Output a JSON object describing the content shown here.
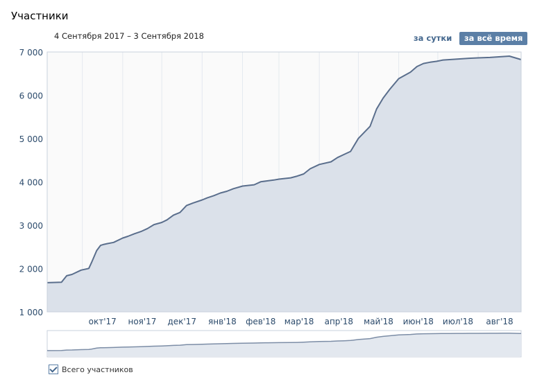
{
  "header": {
    "title": "Участники",
    "date_range": "4 Сентября 2017 – 3 Сентября 2018",
    "btn_day": "за сутки",
    "btn_all": "за всё время"
  },
  "legend": {
    "label": "Всего участников",
    "checked": true
  },
  "colors": {
    "line": "#5a6e8c",
    "fill": "#dbe1ea",
    "grid": "#e4e9ef",
    "bg": "#fafafa"
  },
  "chart_data": {
    "type": "area",
    "title": "",
    "xlabel": "",
    "ylabel": "",
    "ylim": [
      1000,
      7000
    ],
    "xlim": [
      "2017-09-04",
      "2018-09-03"
    ],
    "y_ticks": [
      "1 000",
      "2 000",
      "3 000",
      "4 000",
      "5 000",
      "6 000",
      "7 000"
    ],
    "x_ticks": [
      {
        "label": "окт'17",
        "date": "2017-10-01"
      },
      {
        "label": "ноя'17",
        "date": "2017-11-01"
      },
      {
        "label": "дек'17",
        "date": "2017-12-01"
      },
      {
        "label": "янв'18",
        "date": "2018-01-01"
      },
      {
        "label": "фев'18",
        "date": "2018-02-01"
      },
      {
        "label": "мар'18",
        "date": "2018-03-01"
      },
      {
        "label": "апр'18",
        "date": "2018-04-01"
      },
      {
        "label": "май'18",
        "date": "2018-05-01"
      },
      {
        "label": "июн'18",
        "date": "2018-06-01"
      },
      {
        "label": "июл'18",
        "date": "2018-07-01"
      },
      {
        "label": "авг'18",
        "date": "2018-08-01"
      }
    ],
    "series": [
      {
        "name": "Всего участников",
        "x": [
          "2017-09-04",
          "2017-09-15",
          "2017-09-19",
          "2017-09-23",
          "2017-09-30",
          "2017-10-06",
          "2017-10-08",
          "2017-10-12",
          "2017-10-15",
          "2017-10-17",
          "2017-10-20",
          "2017-10-25",
          "2017-11-01",
          "2017-11-05",
          "2017-11-10",
          "2017-11-15",
          "2017-11-20",
          "2017-11-25",
          "2017-12-01",
          "2017-12-05",
          "2017-12-10",
          "2017-12-15",
          "2017-12-20",
          "2017-12-25",
          "2018-01-01",
          "2018-01-05",
          "2018-01-10",
          "2018-01-15",
          "2018-01-20",
          "2018-01-25",
          "2018-02-01",
          "2018-02-10",
          "2018-02-15",
          "2018-02-20",
          "2018-02-25",
          "2018-03-01",
          "2018-03-10",
          "2018-03-15",
          "2018-03-20",
          "2018-03-25",
          "2018-04-01",
          "2018-04-10",
          "2018-04-15",
          "2018-04-20",
          "2018-04-25",
          "2018-05-01",
          "2018-05-10",
          "2018-05-15",
          "2018-05-20",
          "2018-05-25",
          "2018-06-01",
          "2018-06-10",
          "2018-06-15",
          "2018-06-20",
          "2018-06-25",
          "2018-06-30",
          "2018-07-05",
          "2018-07-10",
          "2018-07-15",
          "2018-07-20",
          "2018-07-25",
          "2018-08-01",
          "2018-08-10",
          "2018-08-15",
          "2018-08-20",
          "2018-08-25",
          "2018-09-03"
        ],
        "values": [
          1690,
          1700,
          1850,
          1880,
          1980,
          2020,
          2150,
          2430,
          2550,
          2570,
          2590,
          2620,
          2720,
          2760,
          2820,
          2870,
          2940,
          3030,
          3080,
          3140,
          3250,
          3310,
          3470,
          3530,
          3600,
          3650,
          3700,
          3760,
          3800,
          3860,
          3920,
          3950,
          4020,
          4040,
          4060,
          4080,
          4110,
          4150,
          4200,
          4320,
          4420,
          4480,
          4580,
          4650,
          4720,
          5020,
          5300,
          5700,
          5950,
          6150,
          6400,
          6550,
          6680,
          6750,
          6780,
          6800,
          6830,
          6840,
          6850,
          6860,
          6870,
          6880,
          6890,
          6900,
          6910,
          6920,
          6840
        ]
      }
    ],
    "grid": true,
    "legend_position": "bottom-left"
  }
}
